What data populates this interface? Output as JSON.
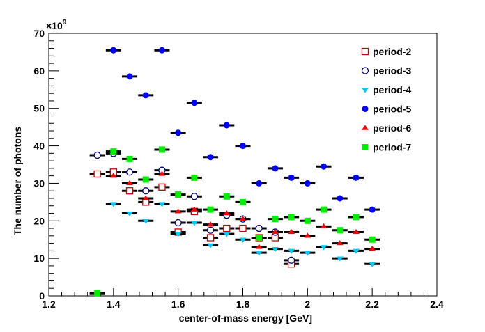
{
  "chart_data": {
    "type": "scatter",
    "title": "",
    "xlabel": "center-of-mass energy [GeV]",
    "ylabel": "The number of photons",
    "y_exponent_label": "×10",
    "y_exponent_power": "9",
    "xlim": [
      1.2,
      2.4
    ],
    "ylim": [
      0,
      70
    ],
    "x_ticks": [
      1.2,
      1.4,
      1.6,
      1.8,
      2.0,
      2.2,
      2.4
    ],
    "x_tick_labels": [
      "1.2",
      "1.4",
      "1.6",
      "1.8",
      "2",
      "2.2",
      "2.4"
    ],
    "y_ticks": [
      0,
      10,
      20,
      30,
      40,
      50,
      60,
      70
    ],
    "y_tick_labels": [
      "0",
      "10",
      "20",
      "30",
      "40",
      "50",
      "60",
      "70"
    ],
    "grid": false,
    "legend_position": "top-right",
    "series": [
      {
        "name": "period-2",
        "color": "#cc0000",
        "marker": "open-square",
        "points": [
          [
            1.35,
            32.5
          ],
          [
            1.4,
            33.0
          ],
          [
            1.45,
            28.0
          ],
          [
            1.5,
            25.0
          ],
          [
            1.55,
            29.0
          ],
          [
            1.6,
            17.0
          ],
          [
            1.65,
            22.5
          ],
          [
            1.7,
            15.5
          ],
          [
            1.75,
            18.0
          ],
          [
            1.8,
            18.0
          ],
          [
            1.85,
            15.5
          ],
          [
            1.9,
            15.5
          ],
          [
            1.95,
            8.5
          ]
        ]
      },
      {
        "name": "period-3",
        "color": "#000080",
        "marker": "open-circle",
        "points": [
          [
            1.35,
            37.5
          ],
          [
            1.4,
            38.0
          ],
          [
            1.45,
            33.0
          ],
          [
            1.5,
            28.0
          ],
          [
            1.55,
            33.5
          ],
          [
            1.6,
            19.5
          ],
          [
            1.65,
            26.5
          ],
          [
            1.7,
            17.5
          ],
          [
            1.75,
            21.5
          ],
          [
            1.8,
            20.5
          ],
          [
            1.85,
            18.0
          ],
          [
            1.9,
            17.0
          ],
          [
            1.95,
            9.5
          ]
        ]
      },
      {
        "name": "period-4",
        "color": "#00ccff",
        "marker": "triangle-down",
        "points": [
          [
            1.35,
            0.5
          ],
          [
            1.4,
            24.5
          ],
          [
            1.45,
            22.0
          ],
          [
            1.5,
            20.0
          ],
          [
            1.55,
            24.5
          ],
          [
            1.6,
            16.5
          ],
          [
            1.65,
            19.5
          ],
          [
            1.7,
            13.5
          ],
          [
            1.75,
            16.5
          ],
          [
            1.8,
            15.0
          ],
          [
            1.85,
            11.5
          ],
          [
            1.9,
            12.5
          ],
          [
            1.95,
            12.0
          ],
          [
            2.0,
            11.5
          ],
          [
            2.05,
            13.0
          ],
          [
            2.1,
            10.0
          ],
          [
            2.15,
            12.0
          ],
          [
            2.2,
            8.5
          ]
        ]
      },
      {
        "name": "period-5",
        "color": "#0000ff",
        "marker": "filled-circle",
        "points": [
          [
            1.4,
            65.5
          ],
          [
            1.45,
            58.5
          ],
          [
            1.5,
            53.5
          ],
          [
            1.55,
            65.5
          ],
          [
            1.6,
            43.5
          ],
          [
            1.65,
            51.5
          ],
          [
            1.7,
            37.0
          ],
          [
            1.75,
            45.5
          ],
          [
            1.8,
            40.0
          ],
          [
            1.85,
            30.0
          ],
          [
            1.9,
            34.0
          ],
          [
            1.95,
            31.5
          ],
          [
            2.0,
            30.0
          ],
          [
            2.05,
            34.5
          ],
          [
            2.1,
            26.0
          ],
          [
            2.15,
            31.5
          ],
          [
            2.2,
            23.0
          ]
        ]
      },
      {
        "name": "period-6",
        "color": "#ff0000",
        "marker": "filled-triangle-up",
        "points": [
          [
            1.4,
            32.0
          ],
          [
            1.45,
            30.0
          ],
          [
            1.5,
            26.0
          ],
          [
            1.55,
            32.5
          ],
          [
            1.6,
            22.5
          ],
          [
            1.65,
            23.0
          ],
          [
            1.7,
            19.0
          ],
          [
            1.75,
            22.0
          ],
          [
            1.8,
            20.5
          ],
          [
            1.85,
            13.0
          ],
          [
            1.9,
            17.0
          ],
          [
            1.95,
            17.0
          ],
          [
            2.0,
            16.0
          ],
          [
            2.05,
            18.5
          ],
          [
            2.1,
            14.0
          ],
          [
            2.15,
            17.0
          ],
          [
            2.2,
            12.5
          ]
        ]
      },
      {
        "name": "period-7",
        "color": "#00ee00",
        "marker": "filled-square",
        "points": [
          [
            1.35,
            0.8
          ],
          [
            1.4,
            38.5
          ],
          [
            1.45,
            36.5
          ],
          [
            1.5,
            31.0
          ],
          [
            1.55,
            39.0
          ],
          [
            1.6,
            27.0
          ],
          [
            1.65,
            31.5
          ],
          [
            1.7,
            23.0
          ],
          [
            1.75,
            26.5
          ],
          [
            1.8,
            25.0
          ],
          [
            1.85,
            15.5
          ],
          [
            1.9,
            20.5
          ],
          [
            1.95,
            21.0
          ],
          [
            2.0,
            20.0
          ],
          [
            2.05,
            23.0
          ],
          [
            2.1,
            17.5
          ],
          [
            2.15,
            21.0
          ],
          [
            2.2,
            15.0
          ]
        ]
      }
    ]
  }
}
